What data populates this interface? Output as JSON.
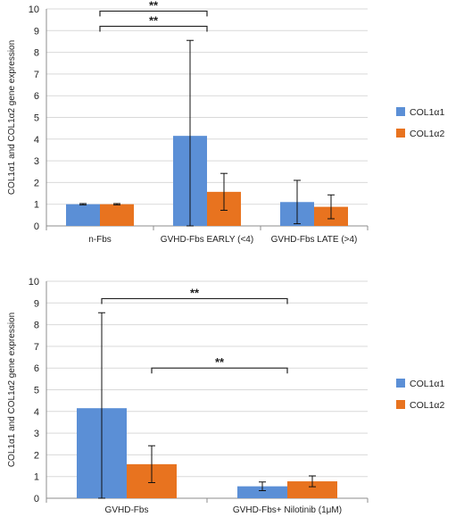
{
  "chart_data": [
    {
      "type": "bar",
      "ylabel": "COL1α1 and COL1α2 gene expression",
      "ylim": [
        0,
        10
      ],
      "yticks": [
        "0",
        "1",
        "2",
        "3",
        "4",
        "5",
        "6",
        "7",
        "8",
        "9",
        "10"
      ],
      "categories": [
        "n-Fbs",
        "GVHD-Fbs EARLY (<4)",
        "GVHD-Fbs LATE (>4)"
      ],
      "series": [
        {
          "name": "COL1α1",
          "color": "#5b8fd6",
          "values": [
            1.0,
            4.15,
            1.1
          ],
          "error": [
            0.03,
            4.4,
            1.0
          ]
        },
        {
          "name": "COL1α2",
          "color": "#e8731f",
          "values": [
            1.0,
            1.57,
            0.88
          ],
          "error": [
            0.03,
            0.85,
            0.55
          ]
        }
      ],
      "annotations": [
        {
          "label": "**",
          "from_category": 0,
          "to_category": 1,
          "level": 9.2
        },
        {
          "label": "**",
          "from_category": 0,
          "to_category": 1,
          "level": 9.9
        }
      ],
      "grid": true,
      "legend": "right"
    },
    {
      "type": "bar",
      "ylabel": "COL1α1 and COL1α2 gene expression",
      "ylim": [
        0,
        10
      ],
      "yticks": [
        "0",
        "1",
        "2",
        "3",
        "4",
        "5",
        "6",
        "7",
        "8",
        "9",
        "10"
      ],
      "categories": [
        "GVHD-Fbs",
        "GVHD-Fbs+ Nilotinib (1μM)"
      ],
      "series": [
        {
          "name": "COL1α1",
          "color": "#5b8fd6",
          "values": [
            4.15,
            0.55
          ],
          "error": [
            4.4,
            0.2
          ]
        },
        {
          "name": "COL1α2",
          "color": "#e8731f",
          "values": [
            1.57,
            0.78
          ],
          "error": [
            0.85,
            0.25
          ]
        }
      ],
      "annotations": [
        {
          "label": "**",
          "from_series": 0,
          "to_category": 1,
          "level": 9.2
        },
        {
          "label": "**",
          "from_series": 1,
          "to_category": 1,
          "level": 6.0
        }
      ],
      "grid": true,
      "legend": "right"
    }
  ]
}
